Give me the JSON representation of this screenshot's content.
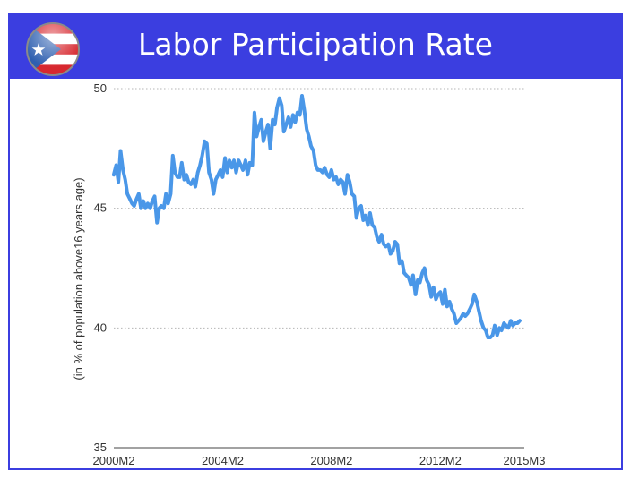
{
  "chart_data": {
    "type": "line",
    "title": "Labor Participation Rate",
    "xlabel": "",
    "ylabel": "(in % of population above16 years age)",
    "ylim": [
      35,
      50
    ],
    "yticks": [
      35,
      40,
      45,
      50
    ],
    "xlim": [
      2000.083,
      2015.167
    ],
    "xticks": [
      {
        "value": 2000.083,
        "label": "2000M2"
      },
      {
        "value": 2004.083,
        "label": "2004M2"
      },
      {
        "value": 2008.083,
        "label": "2008M2"
      },
      {
        "value": 2012.083,
        "label": "2012M2"
      },
      {
        "value": 2015.167,
        "label": "2015M3"
      }
    ],
    "grid": "horizontal dotted",
    "line_color": "#4a97e8",
    "series": [
      {
        "points": [
          [
            2000.08,
            46.4
          ],
          [
            2000.17,
            46.8
          ],
          [
            2000.25,
            46.1
          ],
          [
            2000.33,
            47.4
          ],
          [
            2000.42,
            46.6
          ],
          [
            2000.5,
            46.2
          ],
          [
            2000.58,
            45.6
          ],
          [
            2000.67,
            45.4
          ],
          [
            2000.75,
            45.2
          ],
          [
            2000.83,
            45.1
          ],
          [
            2000.92,
            45.4
          ],
          [
            2001.0,
            45.6
          ],
          [
            2001.08,
            45.0
          ],
          [
            2001.17,
            45.3
          ],
          [
            2001.25,
            45.0
          ],
          [
            2001.33,
            45.2
          ],
          [
            2001.42,
            45.0
          ],
          [
            2001.5,
            45.3
          ],
          [
            2001.58,
            45.5
          ],
          [
            2001.67,
            44.4
          ],
          [
            2001.75,
            45.0
          ],
          [
            2001.83,
            45.1
          ],
          [
            2001.92,
            45.0
          ],
          [
            2002.0,
            45.6
          ],
          [
            2002.08,
            45.2
          ],
          [
            2002.17,
            45.6
          ],
          [
            2002.25,
            47.2
          ],
          [
            2002.33,
            46.5
          ],
          [
            2002.42,
            46.3
          ],
          [
            2002.5,
            46.3
          ],
          [
            2002.58,
            46.9
          ],
          [
            2002.67,
            46.2
          ],
          [
            2002.75,
            46.4
          ],
          [
            2002.83,
            46.1
          ],
          [
            2002.92,
            46.0
          ],
          [
            2003.0,
            46.2
          ],
          [
            2003.08,
            45.9
          ],
          [
            2003.17,
            46.5
          ],
          [
            2003.25,
            46.8
          ],
          [
            2003.33,
            47.2
          ],
          [
            2003.42,
            47.8
          ],
          [
            2003.5,
            47.7
          ],
          [
            2003.58,
            46.5
          ],
          [
            2003.67,
            46.2
          ],
          [
            2003.75,
            45.6
          ],
          [
            2003.83,
            46.2
          ],
          [
            2003.92,
            46.4
          ],
          [
            2004.0,
            46.6
          ],
          [
            2004.08,
            46.3
          ],
          [
            2004.17,
            47.1
          ],
          [
            2004.25,
            46.5
          ],
          [
            2004.33,
            47.0
          ],
          [
            2004.42,
            46.7
          ],
          [
            2004.5,
            47.0
          ],
          [
            2004.58,
            46.5
          ],
          [
            2004.67,
            47.0
          ],
          [
            2004.75,
            46.8
          ],
          [
            2004.83,
            46.6
          ],
          [
            2004.92,
            47.0
          ],
          [
            2005.0,
            46.4
          ],
          [
            2005.08,
            46.9
          ],
          [
            2005.17,
            46.8
          ],
          [
            2005.25,
            49.0
          ],
          [
            2005.33,
            48.0
          ],
          [
            2005.42,
            48.4
          ],
          [
            2005.5,
            48.7
          ],
          [
            2005.58,
            47.8
          ],
          [
            2005.67,
            48.2
          ],
          [
            2005.75,
            48.5
          ],
          [
            2005.83,
            47.5
          ],
          [
            2005.92,
            48.7
          ],
          [
            2006.0,
            48.5
          ],
          [
            2006.08,
            49.2
          ],
          [
            2006.17,
            49.6
          ],
          [
            2006.25,
            49.3
          ],
          [
            2006.33,
            48.2
          ],
          [
            2006.42,
            48.5
          ],
          [
            2006.5,
            48.8
          ],
          [
            2006.58,
            48.4
          ],
          [
            2006.67,
            48.9
          ],
          [
            2006.75,
            48.6
          ],
          [
            2006.83,
            49.0
          ],
          [
            2006.92,
            48.9
          ],
          [
            2007.0,
            49.7
          ],
          [
            2007.08,
            49.1
          ],
          [
            2007.17,
            48.3
          ],
          [
            2007.25,
            48.0
          ],
          [
            2007.33,
            47.6
          ],
          [
            2007.42,
            47.4
          ],
          [
            2007.5,
            46.8
          ],
          [
            2007.58,
            46.6
          ],
          [
            2007.67,
            46.6
          ],
          [
            2007.75,
            46.5
          ],
          [
            2007.83,
            46.7
          ],
          [
            2007.92,
            46.4
          ],
          [
            2008.0,
            46.3
          ],
          [
            2008.08,
            46.6
          ],
          [
            2008.17,
            46.2
          ],
          [
            2008.25,
            46.3
          ],
          [
            2008.33,
            46.0
          ],
          [
            2008.42,
            46.2
          ],
          [
            2008.5,
            46.1
          ],
          [
            2008.58,
            45.6
          ],
          [
            2008.67,
            46.4
          ],
          [
            2008.75,
            46.1
          ],
          [
            2008.83,
            45.6
          ],
          [
            2008.92,
            45.5
          ],
          [
            2009.0,
            44.6
          ],
          [
            2009.08,
            45.0
          ],
          [
            2009.17,
            45.1
          ],
          [
            2009.25,
            44.5
          ],
          [
            2009.33,
            44.7
          ],
          [
            2009.42,
            44.3
          ],
          [
            2009.5,
            44.8
          ],
          [
            2009.58,
            44.3
          ],
          [
            2009.67,
            44.2
          ],
          [
            2009.75,
            43.8
          ],
          [
            2009.83,
            43.6
          ],
          [
            2009.92,
            43.9
          ],
          [
            2010.0,
            43.5
          ],
          [
            2010.08,
            43.4
          ],
          [
            2010.17,
            43.5
          ],
          [
            2010.25,
            43.1
          ],
          [
            2010.33,
            43.2
          ],
          [
            2010.42,
            43.6
          ],
          [
            2010.5,
            43.5
          ],
          [
            2010.58,
            42.7
          ],
          [
            2010.67,
            42.8
          ],
          [
            2010.75,
            42.3
          ],
          [
            2010.83,
            42.2
          ],
          [
            2010.92,
            42.1
          ],
          [
            2011.0,
            41.8
          ],
          [
            2011.08,
            42.2
          ],
          [
            2011.17,
            41.4
          ],
          [
            2011.25,
            42.0
          ],
          [
            2011.33,
            41.9
          ],
          [
            2011.42,
            42.3
          ],
          [
            2011.5,
            42.5
          ],
          [
            2011.58,
            42.0
          ],
          [
            2011.67,
            41.8
          ],
          [
            2011.75,
            41.3
          ],
          [
            2011.83,
            41.7
          ],
          [
            2011.92,
            41.2
          ],
          [
            2012.0,
            41.4
          ],
          [
            2012.08,
            41.5
          ],
          [
            2012.17,
            41.0
          ],
          [
            2012.25,
            41.6
          ],
          [
            2012.33,
            40.9
          ],
          [
            2012.42,
            41.1
          ],
          [
            2012.5,
            40.8
          ],
          [
            2012.58,
            40.6
          ],
          [
            2012.67,
            40.2
          ],
          [
            2012.75,
            40.3
          ],
          [
            2012.83,
            40.4
          ],
          [
            2012.92,
            40.6
          ],
          [
            2013.0,
            40.5
          ],
          [
            2013.08,
            40.6
          ],
          [
            2013.17,
            40.8
          ],
          [
            2013.25,
            41.0
          ],
          [
            2013.33,
            41.4
          ],
          [
            2013.42,
            41.1
          ],
          [
            2013.5,
            40.7
          ],
          [
            2013.58,
            40.3
          ],
          [
            2013.67,
            40.0
          ],
          [
            2013.75,
            39.9
          ],
          [
            2013.83,
            39.6
          ],
          [
            2013.92,
            39.6
          ],
          [
            2014.0,
            39.7
          ],
          [
            2014.08,
            40.1
          ],
          [
            2014.17,
            39.7
          ],
          [
            2014.25,
            40.0
          ],
          [
            2014.33,
            39.9
          ],
          [
            2014.42,
            40.2
          ],
          [
            2014.5,
            40.1
          ],
          [
            2014.58,
            40.0
          ],
          [
            2014.67,
            40.3
          ],
          [
            2014.75,
            40.1
          ],
          [
            2014.83,
            40.2
          ],
          [
            2014.92,
            40.2
          ],
          [
            2015.0,
            40.3
          ]
        ]
      }
    ]
  }
}
